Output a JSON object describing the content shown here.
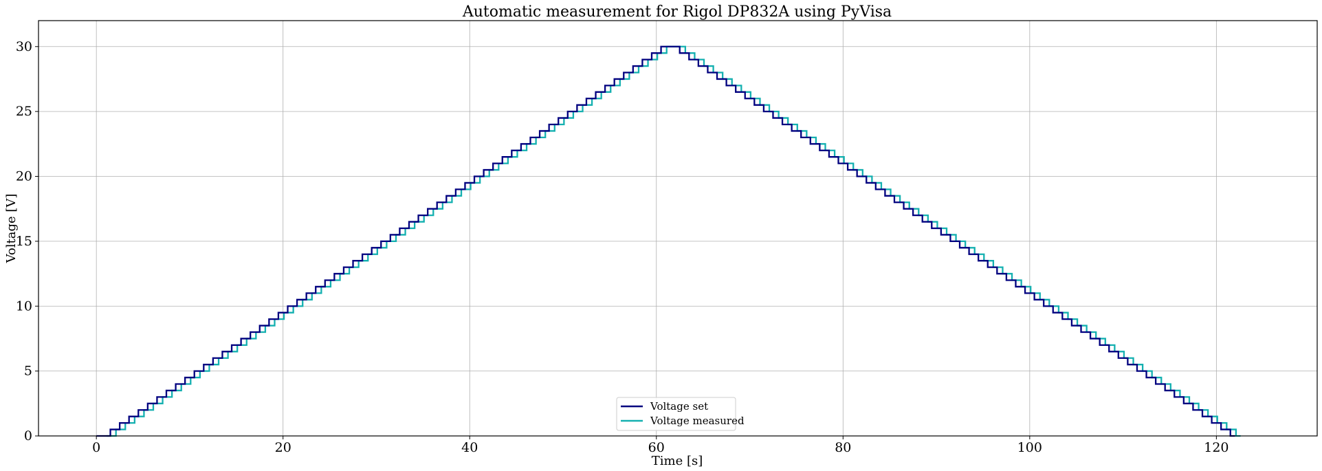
{
  "chart_data": {
    "type": "line",
    "title": "Automatic measurement for Rigol DP832A using PyVisa",
    "xlabel": "Time [s]",
    "ylabel": "Voltage [V]",
    "xlim": [
      -6.2,
      130.8
    ],
    "ylim": [
      0,
      32
    ],
    "x_ticks": [
      0,
      20,
      40,
      60,
      80,
      100,
      120
    ],
    "y_ticks": [
      0,
      5,
      10,
      15,
      20,
      25,
      30
    ],
    "grid": true,
    "legend_position": "bottom-center",
    "step": {
      "style": "steps-post",
      "dt_seconds": 1.0,
      "dv_volts": 0.5,
      "peak_volts": 30,
      "set_start_seconds": 0.5,
      "measured_lag_seconds": 0.6
    },
    "series": [
      {
        "name": "Voltage set",
        "color": "#00007f",
        "profile": [
          [
            0.0,
            0.0
          ],
          [
            0.5,
            0.0
          ],
          [
            61.5,
            30.0
          ],
          [
            62.5,
            30.0
          ],
          [
            123.5,
            0.0
          ],
          [
            124.0,
            0.0
          ]
        ]
      },
      {
        "name": "Voltage measured",
        "color": "#14b0b0",
        "profile": [
          [
            1.1,
            0.0
          ],
          [
            62.1,
            30.0
          ],
          [
            63.1,
            30.0
          ],
          [
            124.1,
            0.0
          ],
          [
            124.9,
            0.0
          ]
        ]
      }
    ]
  }
}
